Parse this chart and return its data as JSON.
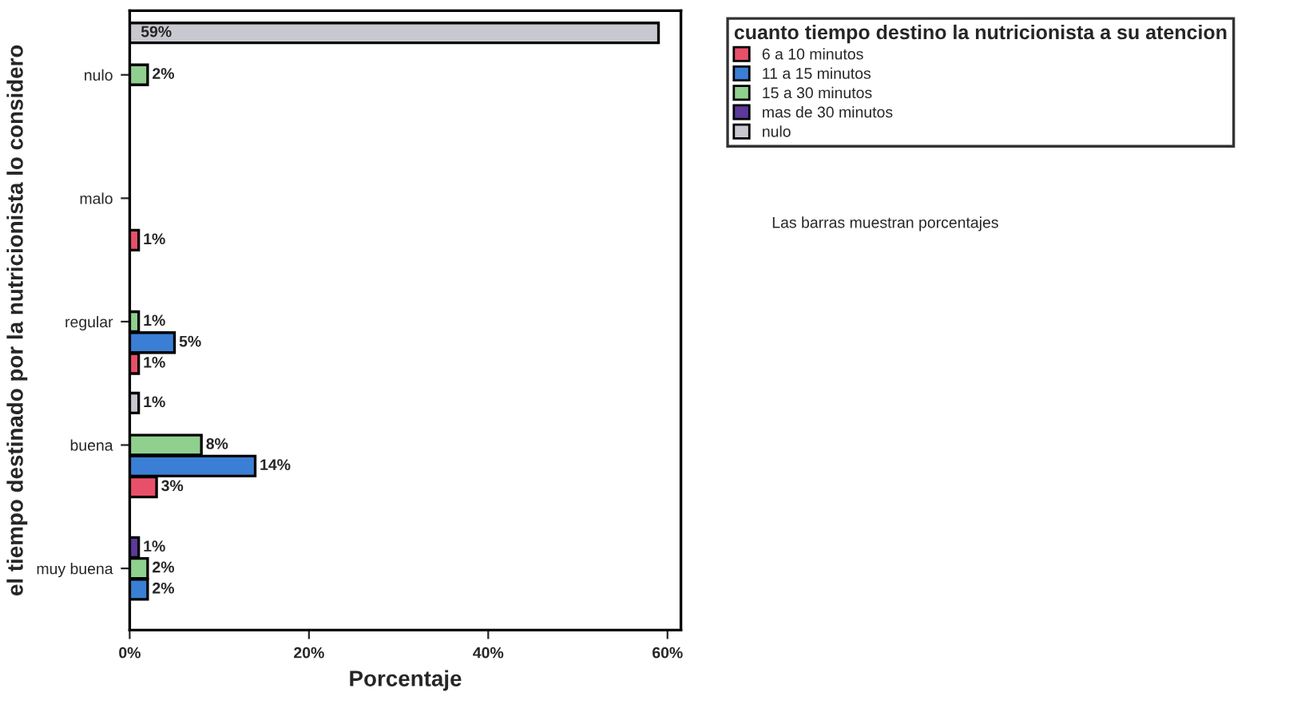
{
  "chart_data": {
    "type": "bar",
    "orientation": "horizontal",
    "ylabel": "el tiempo destinado por la nutricionista lo considero",
    "xlabel": "Porcentaje",
    "legend_title": "cuanto tiempo destino la nutricionista a su atencion",
    "annotations": [
      "Las barras muestran porcentajes"
    ],
    "categories": [
      "nulo",
      "malo",
      "regular",
      "buena",
      "muy buena"
    ],
    "series": [
      {
        "name": "6 a 10 minutos",
        "color": "#e8506a",
        "values": [
          null,
          1,
          1,
          3,
          null
        ],
        "value_labels": [
          null,
          "1%",
          "1%",
          "3%",
          null
        ]
      },
      {
        "name": "11 a 15 minutos",
        "color": "#3a7fd5",
        "values": [
          null,
          null,
          5,
          14,
          2
        ],
        "value_labels": [
          null,
          null,
          "5%",
          "14%",
          "2%"
        ]
      },
      {
        "name": "15 a 30 minutos",
        "color": "#90d08f",
        "values": [
          2,
          null,
          1,
          8,
          2
        ],
        "value_labels": [
          "2%",
          null,
          "1%",
          "8%",
          "2%"
        ]
      },
      {
        "name": "mas de 30 minutos",
        "color": "#5b3a9a",
        "values": [
          null,
          null,
          null,
          null,
          1
        ],
        "value_labels": [
          null,
          null,
          null,
          null,
          "1%"
        ]
      },
      {
        "name": "nulo",
        "color": "#c8c8d0",
        "values": [
          59,
          null,
          null,
          1,
          null
        ],
        "value_labels": [
          "59%",
          null,
          null,
          "1%",
          null
        ]
      }
    ],
    "xlim": [
      0,
      61.5
    ],
    "xticks": [
      {
        "value": 0,
        "label": "0%"
      },
      {
        "value": 20,
        "label": "20%"
      },
      {
        "value": 40,
        "label": "40%"
      },
      {
        "value": 60,
        "label": "60%"
      }
    ],
    "grid": false,
    "legend": "top right"
  }
}
